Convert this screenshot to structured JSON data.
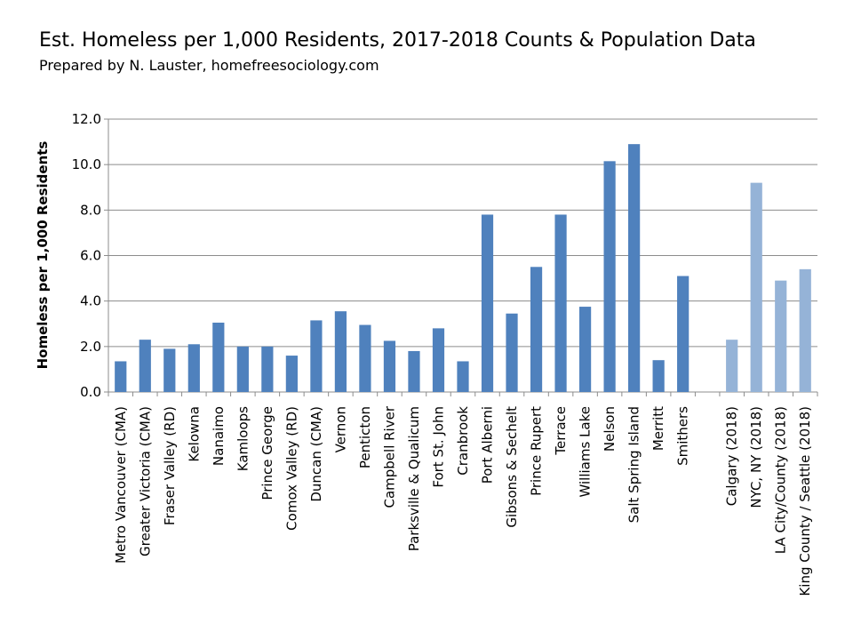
{
  "chart_data": {
    "type": "bar",
    "title": "Est. Homeless per 1,000 Residents, 2017-2018 Counts & Population Data",
    "subtitle": "Prepared by N. Lauster, homefreesociology.com",
    "y_label": "Homeless per 1,000 Residents",
    "categories": [
      "Metro Vancouver (CMA)",
      "Greater Victoria (CMA)",
      "Fraser Valley (RD)",
      "Kelowna",
      "Nanaimo",
      "Kamloops",
      "Prince George",
      "Comox Valley (RD)",
      "Duncan (CMA)",
      "Vernon",
      "Penticton",
      "Campbell River",
      "Parksville & Qualicum",
      "Fort St. John",
      "Cranbrook",
      "Port Alberni",
      "Gibsons & Sechelt",
      "Prince Rupert",
      "Terrace",
      "Williams Lake",
      "Nelson",
      "Salt Spring Island",
      "Merritt",
      "Smithers",
      null,
      "Calgary (2018)",
      "NYC, NY (2018)",
      "LA City/County (2018)",
      "King County / Seattle (2018)"
    ],
    "values": [
      1.35,
      2.3,
      1.9,
      2.1,
      3.05,
      2.0,
      2.0,
      1.6,
      3.15,
      3.55,
      2.95,
      2.25,
      1.8,
      2.8,
      1.35,
      7.8,
      3.45,
      5.5,
      7.8,
      3.75,
      10.15,
      10.9,
      1.4,
      5.1,
      null,
      2.3,
      9.2,
      4.9,
      5.4
    ],
    "colors": [
      "#4f81bd",
      "#4f81bd",
      "#4f81bd",
      "#4f81bd",
      "#4f81bd",
      "#4f81bd",
      "#4f81bd",
      "#4f81bd",
      "#4f81bd",
      "#4f81bd",
      "#4f81bd",
      "#4f81bd",
      "#4f81bd",
      "#4f81bd",
      "#4f81bd",
      "#4f81bd",
      "#4f81bd",
      "#4f81bd",
      "#4f81bd",
      "#4f81bd",
      "#4f81bd",
      "#4f81bd",
      "#4f81bd",
      "#4f81bd",
      null,
      "#95b3d7",
      "#95b3d7",
      "#95b3d7",
      "#95b3d7"
    ],
    "ylim": [
      0,
      12
    ],
    "yticks": [
      {
        "value": 0,
        "label": "0.0"
      },
      {
        "value": 2,
        "label": "2.0"
      },
      {
        "value": 4,
        "label": "4.0"
      },
      {
        "value": 6,
        "label": "6.0"
      },
      {
        "value": 8,
        "label": "8.0"
      },
      {
        "value": 10,
        "label": "10.0"
      },
      {
        "value": 12,
        "label": "12.0"
      }
    ],
    "grid": true
  }
}
